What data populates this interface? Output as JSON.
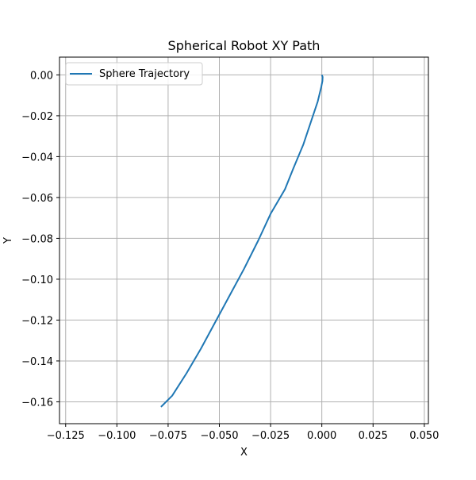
{
  "chart_data": {
    "type": "line",
    "title": "Spherical Robot XY Path",
    "xlabel": "X",
    "ylabel": "Y",
    "xlim": [
      -0.128,
      0.052
    ],
    "ylim": [
      -0.1707,
      0.0087
    ],
    "xticks": [
      -0.125,
      -0.1,
      -0.075,
      -0.05,
      -0.025,
      0.0,
      0.025,
      0.05
    ],
    "xtick_labels": [
      "−0.125",
      "−0.100",
      "−0.075",
      "−0.050",
      "−0.025",
      "0.000",
      "0.025",
      "0.050"
    ],
    "yticks": [
      0.0,
      -0.02,
      -0.04,
      -0.06,
      -0.08,
      -0.1,
      -0.12,
      -0.14,
      -0.16
    ],
    "ytick_labels": [
      "0.00",
      "−0.02",
      "−0.04",
      "−0.06",
      "−0.08",
      "−0.10",
      "−0.12",
      "−0.14",
      "−0.16"
    ],
    "grid": true,
    "legend": {
      "position": "top-left"
    },
    "series": [
      {
        "name": "Sphere Trajectory",
        "color": "#1f77b4",
        "x": [
          0.0,
          0.0004,
          0.0003,
          -0.0003,
          -0.002,
          -0.005,
          -0.009,
          -0.014,
          -0.018,
          -0.025,
          -0.031,
          -0.038,
          -0.045,
          -0.052,
          -0.059,
          -0.066,
          -0.073,
          -0.0785
        ],
        "y": [
          0.0,
          -0.001,
          -0.003,
          -0.006,
          -0.013,
          -0.022,
          -0.034,
          -0.046,
          -0.056,
          -0.068,
          -0.081,
          -0.095,
          -0.108,
          -0.121,
          -0.134,
          -0.146,
          -0.157,
          -0.1625
        ]
      }
    ]
  }
}
